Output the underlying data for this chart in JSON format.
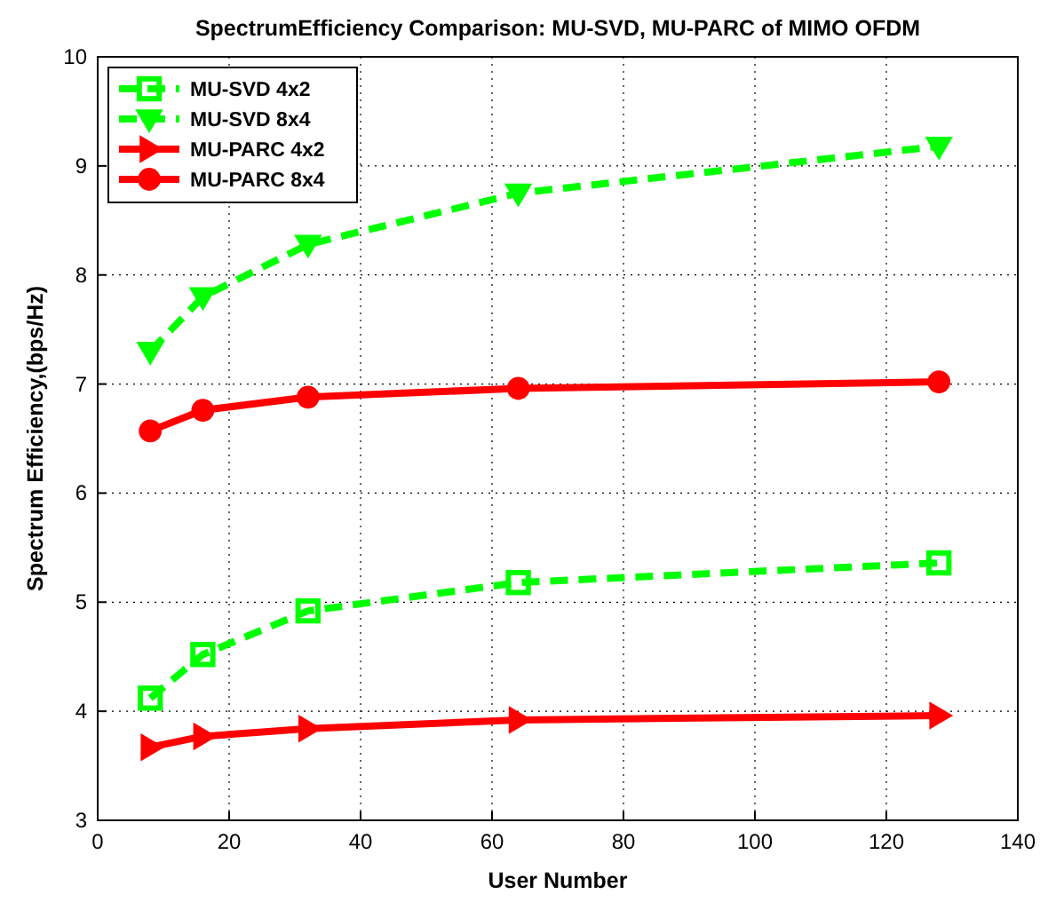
{
  "chart_data": {
    "type": "line",
    "title": "SpectrumEfficiency Comparison: MU-SVD, MU-PARC of MIMO OFDM",
    "xlabel": "User Number",
    "ylabel": "Spectrum Efficiency,(bps/Hz)",
    "x": [
      8,
      16,
      32,
      64,
      128
    ],
    "series": [
      {
        "name": "MU-SVD 4x2",
        "color": "#00ff00",
        "values": [
          4.12,
          4.52,
          4.92,
          5.18,
          5.36
        ],
        "marker": "square",
        "line_style": "dashed"
      },
      {
        "name": "MU-SVD 8x4",
        "color": "#00ff00",
        "values": [
          7.3,
          7.8,
          8.28,
          8.75,
          9.18
        ],
        "marker": "triangle-down",
        "line_style": "dashed"
      },
      {
        "name": "MU-PARC 4x2",
        "color": "#ff0000",
        "values": [
          3.67,
          3.77,
          3.84,
          3.92,
          3.96
        ],
        "marker": "triangle-right",
        "line_style": "solid"
      },
      {
        "name": "MU-PARC 8x4",
        "color": "#ff0000",
        "values": [
          6.57,
          6.76,
          6.88,
          6.96,
          7.02
        ],
        "marker": "circle",
        "line_style": "solid"
      }
    ],
    "xlim": [
      0,
      140
    ],
    "xticks": [
      0,
      20,
      40,
      60,
      80,
      100,
      120,
      140
    ],
    "ylim": [
      3,
      10
    ],
    "yticks": [
      3,
      4,
      5,
      6,
      7,
      8,
      9,
      10
    ],
    "grid": true,
    "legend": "top left"
  }
}
